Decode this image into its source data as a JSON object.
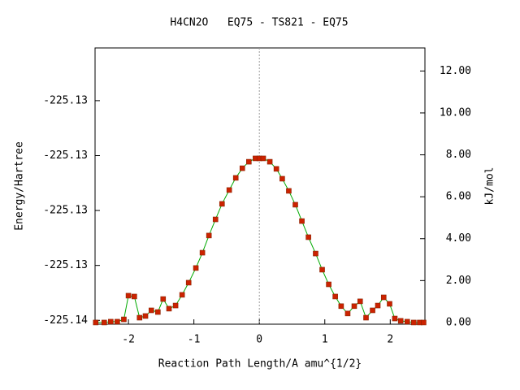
{
  "chart_data": {
    "type": "line",
    "title": "H4CN2O   EQ75 - TS821 - EQ75",
    "x_label": "Reaction Path Length/A amu^{1/2}",
    "y_label": "Energy/Hartree",
    "y2_label": "kJ/mol",
    "xlim": [
      -2.51,
      2.53
    ],
    "xticks": [
      -2,
      -1,
      0,
      1,
      2
    ],
    "ylim": [
      -225.13557,
      -225.13054
    ],
    "yticks": [
      {
        "value": -225.1355,
        "label": "-225.14"
      },
      {
        "value": -225.1345,
        "label": "-225.13"
      },
      {
        "value": -225.1335,
        "label": "-225.13"
      },
      {
        "value": -225.1325,
        "label": "-225.13"
      },
      {
        "value": -225.1315,
        "label": "-225.13"
      }
    ],
    "y2lim": [
      -0.08,
      13.1
    ],
    "y2ticks": [
      {
        "value": 0,
        "label": "0.00"
      },
      {
        "value": 2,
        "label": "2.00"
      },
      {
        "value": 4,
        "label": "4.00"
      },
      {
        "value": 6,
        "label": "6.00"
      },
      {
        "value": 8,
        "label": "8.00"
      },
      {
        "value": 10,
        "label": "10.00"
      },
      {
        "value": 12,
        "label": "12.00"
      }
    ],
    "vline_x": 0,
    "x": [
      -2.5,
      -2.37,
      -2.27,
      -2.17,
      -2.07,
      -2.0,
      -1.91,
      -1.83,
      -1.74,
      -1.65,
      -1.55,
      -1.47,
      -1.38,
      -1.28,
      -1.18,
      -1.08,
      -0.97,
      -0.87,
      -0.77,
      -0.67,
      -0.57,
      -0.46,
      -0.36,
      -0.26,
      -0.16,
      -0.06,
      0,
      0.06,
      0.16,
      0.26,
      0.35,
      0.45,
      0.55,
      0.65,
      0.75,
      0.86,
      0.96,
      1.06,
      1.16,
      1.25,
      1.35,
      1.45,
      1.54,
      1.63,
      1.73,
      1.81,
      1.9,
      1.99,
      2.07,
      2.16,
      2.26,
      2.36,
      2.45,
      2.51
    ],
    "series": [
      {
        "axis": "y2",
        "color": "#cc2200",
        "line_color": "#00aa00",
        "values": [
          0.0,
          0.0,
          0.04,
          0.04,
          0.15,
          1.28,
          1.24,
          0.23,
          0.31,
          0.58,
          0.5,
          1.12,
          0.66,
          0.81,
          1.32,
          1.9,
          2.6,
          3.33,
          4.15,
          4.92,
          5.66,
          6.32,
          6.9,
          7.36,
          7.67,
          7.83,
          7.83,
          7.83,
          7.67,
          7.33,
          6.86,
          6.28,
          5.62,
          4.84,
          4.07,
          3.29,
          2.52,
          1.82,
          1.24,
          0.78,
          0.43,
          0.78,
          1.01,
          0.23,
          0.58,
          0.81,
          1.2,
          0.89,
          0.19,
          0.08,
          0.04,
          0.0,
          0.0,
          0.0
        ]
      }
    ]
  }
}
